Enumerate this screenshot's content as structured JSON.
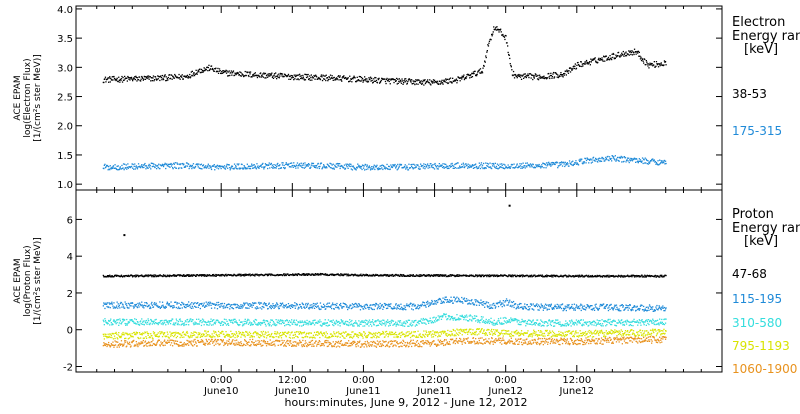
{
  "chart_data": [
    {
      "type": "scatter",
      "panel": "electron",
      "ylabel_lines": [
        "ACE EPAM",
        "log(Electron Flux)",
        "[1/(cm²s ster MeV)]"
      ],
      "ylim": [
        0.9,
        4.05
      ],
      "yticks": [
        {
          "value": 1.0,
          "label": "1.0"
        },
        {
          "value": 1.5,
          "label": "1.5"
        },
        {
          "value": 2.0,
          "label": "2.0"
        },
        {
          "value": 2.5,
          "label": "2.5"
        },
        {
          "value": 3.0,
          "label": "3.0"
        },
        {
          "value": 3.5,
          "label": "3.5"
        },
        {
          "value": 4.0,
          "label": "4.0"
        }
      ],
      "legend_title_lines": [
        "Electron",
        "Energy ran",
        "[keV]"
      ],
      "series": [
        {
          "name": "38-53",
          "color": "#000000",
          "points": [
            [
              -20,
              2.8
            ],
            [
              -12,
              2.82
            ],
            [
              -6,
              2.85
            ],
            [
              -4,
              2.95
            ],
            [
              -2,
              3.0
            ],
            [
              0,
              2.92
            ],
            [
              6,
              2.88
            ],
            [
              12,
              2.85
            ],
            [
              18,
              2.83
            ],
            [
              24,
              2.8
            ],
            [
              30,
              2.77
            ],
            [
              36,
              2.75
            ],
            [
              40,
              2.8
            ],
            [
              44,
              2.95
            ],
            [
              45,
              3.4
            ],
            [
              46,
              3.7
            ],
            [
              47,
              3.62
            ],
            [
              48,
              3.5
            ],
            [
              49,
              2.9
            ],
            [
              50,
              2.85
            ],
            [
              54,
              2.85
            ],
            [
              58,
              2.9
            ],
            [
              60,
              3.05
            ],
            [
              64,
              3.15
            ],
            [
              68,
              3.25
            ],
            [
              70,
              3.28
            ],
            [
              71,
              3.15
            ],
            [
              72,
              3.05
            ],
            [
              75,
              3.08
            ]
          ]
        },
        {
          "name": "175-315",
          "color": "#1f8ad8",
          "points": [
            [
              -20,
              1.3
            ],
            [
              -12,
              1.32
            ],
            [
              -6,
              1.33
            ],
            [
              0,
              1.3
            ],
            [
              6,
              1.32
            ],
            [
              12,
              1.33
            ],
            [
              18,
              1.32
            ],
            [
              24,
              1.3
            ],
            [
              30,
              1.3
            ],
            [
              36,
              1.32
            ],
            [
              42,
              1.33
            ],
            [
              48,
              1.32
            ],
            [
              54,
              1.33
            ],
            [
              58,
              1.35
            ],
            [
              62,
              1.42
            ],
            [
              66,
              1.45
            ],
            [
              70,
              1.42
            ],
            [
              75,
              1.38
            ]
          ]
        }
      ]
    },
    {
      "type": "scatter",
      "panel": "proton",
      "ylabel_lines": [
        "ACE EPAM",
        "log(Proton Flux)",
        "[1/(cm²s ster MeV)]"
      ],
      "ylim": [
        -2.3,
        7.6
      ],
      "yticks": [
        {
          "value": -2,
          "label": "-2"
        },
        {
          "value": 0,
          "label": "0"
        },
        {
          "value": 2,
          "label": "2"
        },
        {
          "value": 4,
          "label": "4"
        },
        {
          "value": 6,
          "label": "6"
        }
      ],
      "legend_title_lines": [
        "Proton",
        "Energy ran",
        "[keV]"
      ],
      "series": [
        {
          "name": "47-68",
          "color": "#000000",
          "points": [
            [
              -20,
              2.95
            ],
            [
              -10,
              2.97
            ],
            [
              0,
              3.0
            ],
            [
              10,
              3.02
            ],
            [
              16,
              3.05
            ],
            [
              24,
              3.0
            ],
            [
              36,
              2.98
            ],
            [
              48,
              2.97
            ],
            [
              60,
              2.95
            ],
            [
              75,
              2.95
            ]
          ],
          "outliers": [
            [
              -16.5,
              5.2
            ],
            [
              48.5,
              6.8
            ]
          ]
        },
        {
          "name": "115-195",
          "color": "#1f8ad8",
          "points": [
            [
              -20,
              1.35
            ],
            [
              -10,
              1.38
            ],
            [
              0,
              1.35
            ],
            [
              12,
              1.33
            ],
            [
              24,
              1.3
            ],
            [
              33,
              1.3
            ],
            [
              38,
              1.65
            ],
            [
              42,
              1.6
            ],
            [
              44,
              1.45
            ],
            [
              46,
              1.3
            ],
            [
              48,
              1.55
            ],
            [
              50,
              1.3
            ],
            [
              56,
              1.25
            ],
            [
              66,
              1.25
            ],
            [
              75,
              1.2
            ]
          ]
        },
        {
          "name": "310-580",
          "color": "#33dddd",
          "points": [
            [
              -20,
              0.45
            ],
            [
              -10,
              0.45
            ],
            [
              0,
              0.43
            ],
            [
              12,
              0.4
            ],
            [
              24,
              0.4
            ],
            [
              33,
              0.4
            ],
            [
              38,
              0.75
            ],
            [
              42,
              0.65
            ],
            [
              46,
              0.45
            ],
            [
              48,
              0.55
            ],
            [
              52,
              0.4
            ],
            [
              60,
              0.4
            ],
            [
              75,
              0.45
            ]
          ]
        },
        {
          "name": "795-1193",
          "color": "#d8e400",
          "points": [
            [
              -20,
              -0.3
            ],
            [
              -10,
              -0.25
            ],
            [
              0,
              -0.2
            ],
            [
              12,
              -0.25
            ],
            [
              24,
              -0.25
            ],
            [
              36,
              -0.2
            ],
            [
              42,
              -0.05
            ],
            [
              48,
              -0.15
            ],
            [
              60,
              -0.2
            ],
            [
              75,
              -0.1
            ]
          ]
        },
        {
          "name": "1060-1900",
          "color": "#e8921e",
          "points": [
            [
              -20,
              -0.75
            ],
            [
              -10,
              -0.7
            ],
            [
              0,
              -0.65
            ],
            [
              12,
              -0.7
            ],
            [
              24,
              -0.75
            ],
            [
              36,
              -0.7
            ],
            [
              42,
              -0.55
            ],
            [
              48,
              -0.6
            ],
            [
              60,
              -0.6
            ],
            [
              75,
              -0.5
            ]
          ]
        }
      ]
    }
  ],
  "x_axis": {
    "xlim": [
      -24.5,
      84.5
    ],
    "ticks": [
      {
        "value": 0,
        "time": "0:00",
        "day": "June10"
      },
      {
        "value": 12,
        "time": "12:00",
        "day": "June10"
      },
      {
        "value": 24,
        "time": "0:00",
        "day": "June11"
      },
      {
        "value": 36,
        "time": "12:00",
        "day": "June11"
      },
      {
        "value": 48,
        "time": "0:00",
        "day": "June12"
      },
      {
        "value": 60,
        "time": "12:00",
        "day": "June12"
      }
    ],
    "title": "hours:minutes, June  9, 2012 - June 12, 2012"
  }
}
